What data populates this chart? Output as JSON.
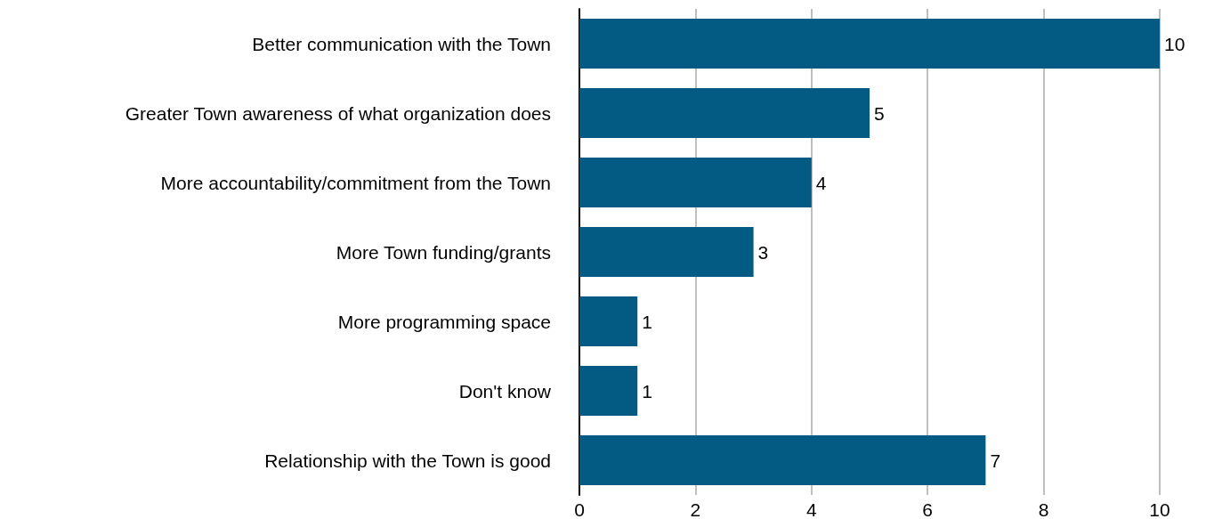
{
  "chart_data": {
    "type": "bar",
    "orientation": "horizontal",
    "categories": [
      "Better communication with the Town",
      "Greater Town awareness of what organization does",
      "More accountability/commitment from the Town",
      "More Town funding/grants",
      "More programming space",
      "Don't know",
      "Relationship with the Town is good"
    ],
    "values": [
      10,
      5,
      4,
      3,
      1,
      1,
      7
    ],
    "color": "#035a82",
    "xlim": [
      0,
      10
    ],
    "xticks": [
      0,
      2,
      4,
      6,
      8,
      10
    ],
    "grid": "x",
    "data_labels": true
  }
}
